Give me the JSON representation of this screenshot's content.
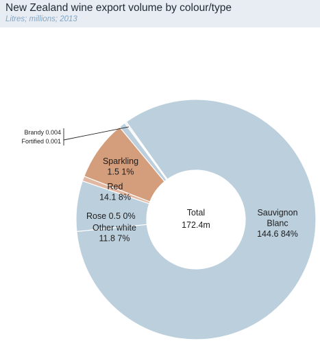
{
  "title": "New Zealand wine export volume by colour/type",
  "subtitle": "Litres; millions; 2013",
  "colors": {
    "sauvignon_blanc": "#bccfdd",
    "sparkling": "#bccfdd",
    "red": "#d49d7b",
    "rose": "#e3b8a2",
    "other_white": "#bccfdd",
    "small_types": "#bccfdd",
    "separator": "#ffffff",
    "header_bg": "#e8edf3"
  },
  "chart_data": {
    "type": "pie",
    "donut": true,
    "title": "New Zealand wine export volume by colour/type",
    "subtitle": "Litres; millions; 2013",
    "center_label": {
      "line1": "Total",
      "line2": "172.4m"
    },
    "slices": [
      {
        "key": "sauvignon_blanc",
        "label_lines": [
          "Sauvignon",
          "Blanc",
          "144.6  84%"
        ],
        "value": 144.6,
        "percent": "84%"
      },
      {
        "key": "other_white",
        "label_lines": [
          "Other white",
          "11.8  7%"
        ],
        "value": 11.8,
        "percent": "7%"
      },
      {
        "key": "rose",
        "label_lines": [
          "Rose  0.5  0%"
        ],
        "value": 0.5,
        "percent": "0%"
      },
      {
        "key": "red",
        "label_lines": [
          "Red",
          "14.1  8%"
        ],
        "value": 14.1,
        "percent": "8%"
      },
      {
        "key": "sparkling",
        "label_lines": [
          "Sparkling",
          "1.5  1%"
        ],
        "value": 1.5,
        "percent": "1%"
      },
      {
        "key": "fortified",
        "label_lines": [
          "Fortified 0.001"
        ],
        "value": 0.001
      },
      {
        "key": "brandy",
        "label_lines": [
          "Brandy 0.004"
        ],
        "value": 0.004
      }
    ]
  }
}
